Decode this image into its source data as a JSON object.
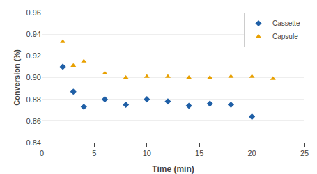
{
  "chart_data": {
    "type": "scatter",
    "xlabel": "Time (min)",
    "ylabel": "Conversion (%)",
    "series": [
      {
        "name": "Cassette",
        "color": "#1F5FA6",
        "marker": "diamond",
        "x": [
          2,
          3,
          4,
          6,
          8,
          10,
          12,
          14,
          16,
          18,
          20
        ],
        "values": [
          0.91,
          0.887,
          0.873,
          0.88,
          0.875,
          0.88,
          0.878,
          0.874,
          0.876,
          0.875,
          0.864
        ]
      },
      {
        "name": "Capsule",
        "color": "#E8A000",
        "marker": "triangle-up",
        "x": [
          2,
          3,
          4,
          6,
          8,
          10,
          12,
          14,
          16,
          18,
          20,
          22
        ],
        "values": [
          0.933,
          0.911,
          0.915,
          0.904,
          0.9,
          0.901,
          0.901,
          0.9,
          0.9,
          0.901,
          0.901,
          0.899
        ]
      }
    ],
    "xlim": [
      0,
      25
    ],
    "xticks": [
      0,
      5,
      10,
      15,
      20,
      25
    ],
    "ylim": [
      0.84,
      0.96
    ],
    "yticks": [
      0.84,
      0.86,
      0.88,
      {
        "value": 0.9,
        "label": "0.90"
      },
      0.92,
      0.94,
      0.96
    ],
    "grid": "y",
    "legend": "upper right"
  }
}
